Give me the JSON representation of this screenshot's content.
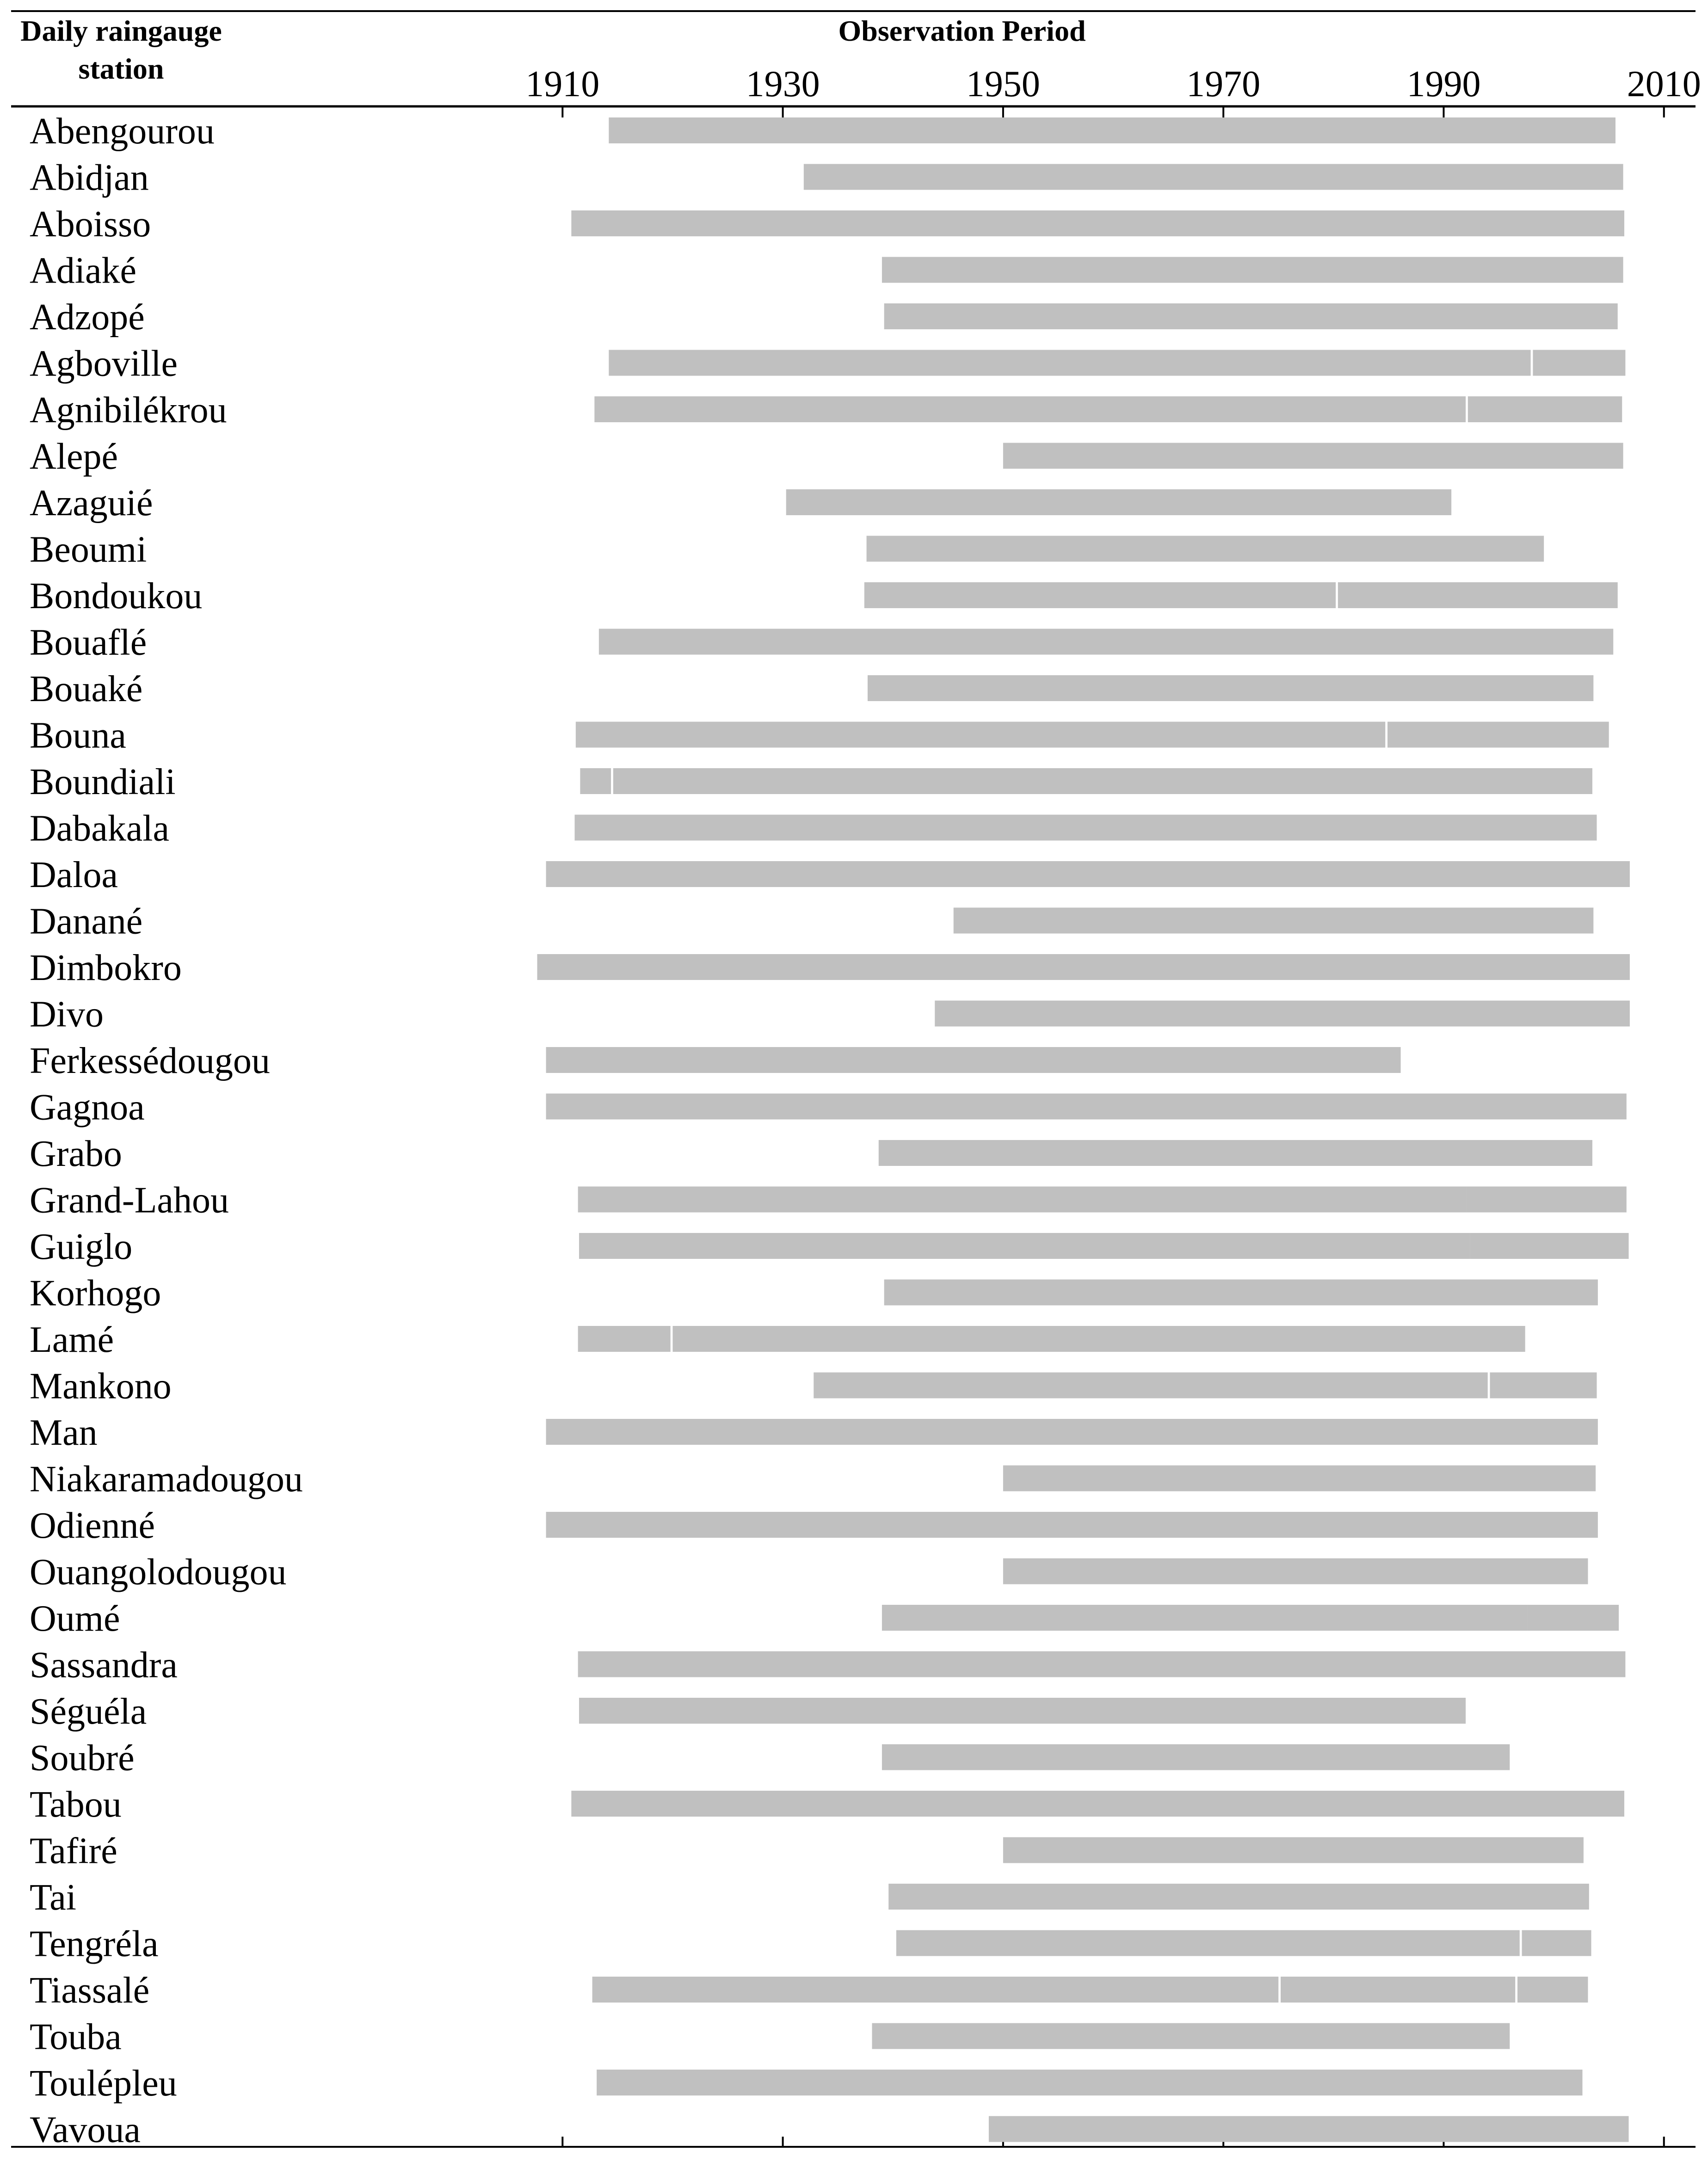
{
  "chart_data": {
    "type": "gantt",
    "header": {
      "station": [
        "Daily raingauge",
        "station"
      ],
      "period": "Observation Period"
    },
    "x_ticks": [
      1910,
      1930,
      1950,
      1970,
      1990,
      2010
    ],
    "x_range": [
      1890,
      2014
    ],
    "bar_color": "#c0c0c0",
    "stations": [
      {
        "name": "Abengourou",
        "segments": [
          [
            1914.2,
            2005.6
          ]
        ]
      },
      {
        "name": "Abidjan",
        "segments": [
          [
            1931.9,
            2006.3
          ]
        ]
      },
      {
        "name": "Aboisso",
        "segments": [
          [
            1910.8,
            2006.4
          ]
        ]
      },
      {
        "name": "Adiaké",
        "segments": [
          [
            1939.0,
            2006.3
          ]
        ]
      },
      {
        "name": "Adzopé",
        "segments": [
          [
            1939.2,
            2005.8
          ]
        ]
      },
      {
        "name": "Agboville",
        "segments": [
          [
            1914.2,
            1997.9
          ],
          [
            1998.1,
            2006.5
          ]
        ]
      },
      {
        "name": "Agnibilékrou",
        "segments": [
          [
            1912.9,
            1992.0
          ],
          [
            1992.2,
            2006.2
          ]
        ]
      },
      {
        "name": "Alepé",
        "segments": [
          [
            1950.0,
            2006.3
          ]
        ]
      },
      {
        "name": "Azaguié",
        "segments": [
          [
            1930.3,
            1990.7
          ]
        ]
      },
      {
        "name": "Beoumi",
        "segments": [
          [
            1937.6,
            1999.1
          ]
        ]
      },
      {
        "name": "Bondoukou",
        "segments": [
          [
            1937.4,
            1980.2
          ],
          [
            1980.4,
            2005.8
          ]
        ]
      },
      {
        "name": "Bouaflé",
        "segments": [
          [
            1913.3,
            2005.4
          ]
        ]
      },
      {
        "name": "Bouaké",
        "segments": [
          [
            1937.7,
            2003.6
          ]
        ]
      },
      {
        "name": "Bouna",
        "segments": [
          [
            1911.2,
            1984.7
          ],
          [
            1984.9,
            2005.0
          ]
        ]
      },
      {
        "name": "Boundiali",
        "segments": [
          [
            1911.6,
            1914.4
          ],
          [
            1914.6,
            2003.5
          ]
        ]
      },
      {
        "name": "Dabakala",
        "segments": [
          [
            1911.1,
            2003.9
          ]
        ]
      },
      {
        "name": "Daloa",
        "segments": [
          [
            1908.5,
            2006.9
          ]
        ]
      },
      {
        "name": "Danané",
        "segments": [
          [
            1945.5,
            2003.6
          ]
        ]
      },
      {
        "name": "Dimbokro",
        "segments": [
          [
            1907.7,
            2006.9
          ]
        ]
      },
      {
        "name": "Divo",
        "segments": [
          [
            1943.8,
            2006.9
          ]
        ]
      },
      {
        "name": "Ferkessédougou",
        "segments": [
          [
            1908.5,
            1986.1
          ]
        ]
      },
      {
        "name": "Gagnoa",
        "segments": [
          [
            1908.5,
            2006.6
          ]
        ]
      },
      {
        "name": "Grabo",
        "segments": [
          [
            1938.7,
            2003.5
          ]
        ]
      },
      {
        "name": "Grand-Lahou",
        "segments": [
          [
            1911.4,
            1992.1
          ],
          [
            1992.1,
            2006.6
          ]
        ]
      },
      {
        "name": "Guiglo",
        "segments": [
          [
            1911.5,
            1992.4
          ],
          [
            1992.4,
            2006.8
          ]
        ]
      },
      {
        "name": "Korhogo",
        "segments": [
          [
            1939.2,
            2004.0
          ]
        ]
      },
      {
        "name": "Lamé",
        "segments": [
          [
            1911.4,
            1919.8
          ],
          [
            1920.0,
            1997.4
          ]
        ]
      },
      {
        "name": "Mankono",
        "segments": [
          [
            1932.8,
            1994.0
          ],
          [
            1994.2,
            2003.9
          ]
        ]
      },
      {
        "name": "Man",
        "segments": [
          [
            1908.5,
            2004.0
          ]
        ]
      },
      {
        "name": "Niakaramadougou",
        "segments": [
          [
            1950.0,
            2003.8
          ]
        ]
      },
      {
        "name": "Odienné",
        "segments": [
          [
            1908.5,
            2004.0
          ]
        ]
      },
      {
        "name": "Ouangolodougou",
        "segments": [
          [
            1950.0,
            2003.1
          ]
        ]
      },
      {
        "name": "Oumé",
        "segments": [
          [
            1939.0,
            1997.6
          ],
          [
            1997.6,
            2005.9
          ]
        ]
      },
      {
        "name": "Sassandra",
        "segments": [
          [
            1911.4,
            2006.5
          ]
        ]
      },
      {
        "name": "Séguéla",
        "segments": [
          [
            1911.5,
            1992.0
          ]
        ]
      },
      {
        "name": "Soubré",
        "segments": [
          [
            1939.0,
            1996.0
          ]
        ]
      },
      {
        "name": "Tabou",
        "segments": [
          [
            1910.8,
            2006.4
          ]
        ]
      },
      {
        "name": "Tafiré",
        "segments": [
          [
            1950.0,
            2002.7
          ]
        ]
      },
      {
        "name": "Tai",
        "segments": [
          [
            1939.6,
            1960.0
          ],
          [
            1960.0,
            2003.2
          ]
        ]
      },
      {
        "name": "Tengréla",
        "segments": [
          [
            1940.3,
            1996.9
          ],
          [
            1997.1,
            2003.4
          ]
        ]
      },
      {
        "name": "Tiassalé",
        "segments": [
          [
            1912.7,
            1975.0
          ],
          [
            1975.2,
            1996.5
          ],
          [
            1996.7,
            2003.1
          ]
        ]
      },
      {
        "name": "Touba",
        "segments": [
          [
            1938.1,
            1996.0
          ]
        ]
      },
      {
        "name": "Toulépleu",
        "segments": [
          [
            1913.1,
            2002.6
          ]
        ]
      },
      {
        "name": "Vavoua",
        "segments": [
          [
            1948.7,
            2006.8
          ]
        ]
      }
    ]
  }
}
